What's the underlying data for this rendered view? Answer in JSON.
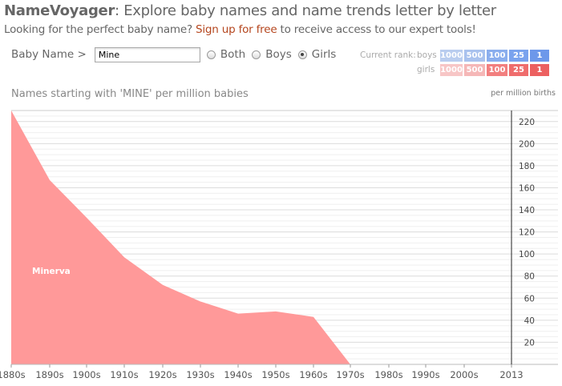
{
  "header": {
    "brand": "NameVoyager",
    "title_rest": ": Explore baby names and name trends letter by letter",
    "subtitle_before": "Looking for the perfect baby name? ",
    "signup_link": "Sign up for free",
    "subtitle_after": " to receive access to our expert tools!"
  },
  "controls": {
    "label": "Baby Name >",
    "input_value": "Mine",
    "options": [
      {
        "label": "Both",
        "checked": false
      },
      {
        "label": "Boys",
        "checked": false
      },
      {
        "label": "Girls",
        "checked": true
      }
    ]
  },
  "rank": {
    "label": "Current rank:",
    "rows": [
      {
        "label": "boys",
        "boxes": [
          {
            "text": "1000",
            "color": "#b9cdef"
          },
          {
            "text": "500",
            "color": "#a9c2ee"
          },
          {
            "text": "100",
            "color": "#8aaeee"
          },
          {
            "text": "25",
            "color": "#7aa3ee"
          },
          {
            "text": "1",
            "color": "#6d98ea"
          }
        ]
      },
      {
        "label": "girls",
        "boxes": [
          {
            "text": "1000",
            "color": "#f7c6c6"
          },
          {
            "text": "500",
            "color": "#f5b7b7"
          },
          {
            "text": "100",
            "color": "#f27f7f"
          },
          {
            "text": "25",
            "color": "#ef6d6d"
          },
          {
            "text": "1",
            "color": "#ec6060"
          }
        ]
      }
    ]
  },
  "chart_title": "Names starting with 'MINE' per million babies",
  "chart_unit": "per million births",
  "chart_data": {
    "type": "area",
    "x": [
      "1880s",
      "1890s",
      "1900s",
      "1910s",
      "1920s",
      "1930s",
      "1940s",
      "1950s",
      "1960s",
      "1970s",
      "1980s",
      "1990s",
      "2000s",
      "2013"
    ],
    "series": [
      {
        "name": "Minerva",
        "color": "#ff9999",
        "values": [
          230,
          167,
          133,
          97,
          72,
          57,
          46,
          48,
          43,
          0,
          0,
          0,
          0,
          0
        ]
      }
    ],
    "yticks": [
      20,
      40,
      60,
      80,
      100,
      120,
      140,
      160,
      180,
      200,
      220
    ],
    "ylim": [
      0,
      230
    ],
    "label_anchor_value": 85
  }
}
